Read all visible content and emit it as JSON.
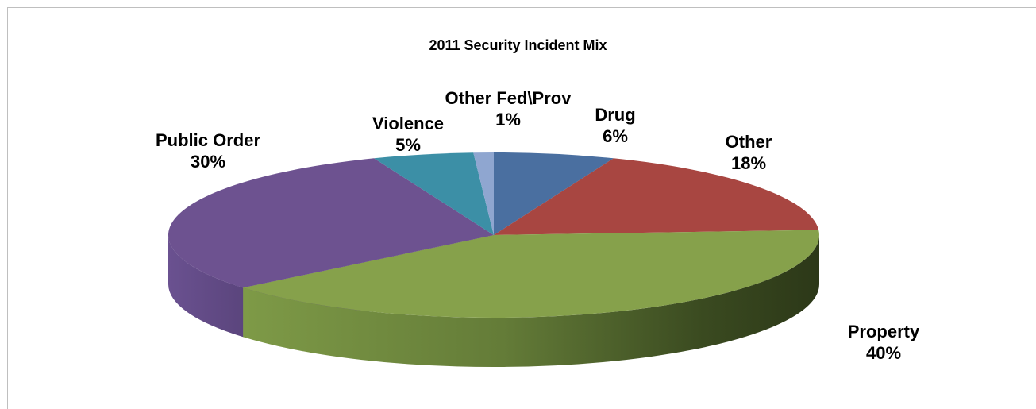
{
  "chart_data": {
    "type": "pie",
    "title": "2011 Security Incident Mix",
    "series": [
      {
        "slices": [
          {
            "label": "Drug",
            "value": 6,
            "value_label": "6%",
            "color": "#4a6fa0"
          },
          {
            "label": "Other",
            "value": 18,
            "value_label": "18%",
            "color": "#a84641"
          },
          {
            "label": "Property",
            "value": 40,
            "value_label": "40%",
            "color": "#86a14b"
          },
          {
            "label": "Public Order",
            "value": 30,
            "value_label": "30%",
            "color": "#6d5290"
          },
          {
            "label": "Violence",
            "value": 5,
            "value_label": "5%",
            "color": "#3c8fa6"
          },
          {
            "label": "Other Fed\\Prov",
            "value": 1,
            "value_label": "1%",
            "color": "#8fa6d0"
          }
        ]
      }
    ],
    "legend": "none",
    "style": "3d"
  }
}
